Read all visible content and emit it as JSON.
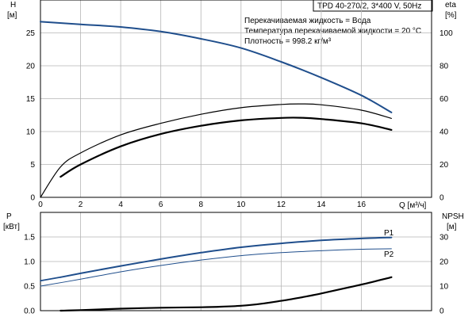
{
  "header": {
    "title": "TPD 40-270/2, 3*400 V, 50Hz",
    "liquid": "Перекачиваемая жидкость = Вода",
    "temperature": "Температура перекачиваемой жидкости = 20 °C",
    "density": "Плотность = 998.2 кг/м³"
  },
  "colors": {
    "blue": "#1f4e8c",
    "black": "#000000",
    "grid": "#b5b5b5"
  },
  "chart_data": [
    {
      "type": "line",
      "title": "",
      "xlabel": "Q [м³/ч]",
      "ylabel": "H [м]",
      "y2label": "eta [%]",
      "y_label_top": "H",
      "y_label_unit": "[м]",
      "y2_label_top": "eta",
      "y2_label_unit": "[%]",
      "xlim": [
        0,
        19.5
      ],
      "ylim": [
        0,
        30
      ],
      "y2lim": [
        0,
        120
      ],
      "xticks": [
        0,
        2,
        4,
        6,
        8,
        10,
        12,
        14,
        16
      ],
      "yticks": [
        0,
        5,
        10,
        15,
        20,
        25
      ],
      "y2ticks": [
        0,
        20,
        40,
        60,
        80,
        100
      ],
      "grid": true,
      "series": [
        {
          "name": "",
          "axis": "left",
          "color": "#1f4e8c",
          "width": 2,
          "x": [
            0,
            2,
            4,
            6,
            8,
            10,
            12,
            14,
            16,
            17.5
          ],
          "y": [
            26.7,
            26.3,
            25.9,
            25.2,
            24.1,
            22.7,
            20.6,
            18.2,
            15.5,
            12.9
          ]
        },
        {
          "name": "",
          "axis": "right",
          "color": "#000000",
          "width": 1.2,
          "x": [
            0,
            1,
            2,
            4,
            6,
            8,
            10,
            12,
            13,
            14,
            16,
            17.5
          ],
          "y": [
            0,
            18.5,
            27,
            38,
            45,
            50.5,
            54.5,
            56.5,
            56.8,
            56.3,
            53,
            48
          ]
        },
        {
          "name": "",
          "axis": "right",
          "color": "#000000",
          "width": 2.2,
          "x": [
            1,
            2,
            4,
            6,
            8,
            10,
            12,
            13,
            14,
            16,
            17.5
          ],
          "y": [
            12.5,
            20,
            31,
            38.5,
            43.5,
            46.8,
            48.3,
            48.4,
            47.6,
            45,
            41
          ]
        }
      ]
    },
    {
      "type": "line",
      "title": "",
      "xlabel": "",
      "ylabel": "P [кВт]",
      "y2label": "NPSH [м]",
      "y_label_top": "P",
      "y_label_unit": "[кВт]",
      "y2_label_top": "NPSH",
      "y2_label_unit": "[м]",
      "xlim": [
        0,
        19.5
      ],
      "ylim": [
        0,
        2
      ],
      "y2lim": [
        0,
        40
      ],
      "yticks": [
        0,
        0.5,
        1.0,
        1.5
      ],
      "ytick_labels": [
        "0.0",
        "0.5",
        "1.0",
        "1.5"
      ],
      "y2ticks": [
        0,
        10,
        20,
        30
      ],
      "grid": true,
      "series": [
        {
          "name": "P1",
          "axis": "left",
          "color": "#1f4e8c",
          "width": 2,
          "x": [
            1,
            2,
            4,
            6,
            8,
            10,
            12,
            14,
            16,
            17.5
          ],
          "y": [
            0.68,
            0.76,
            0.91,
            1.05,
            1.18,
            1.29,
            1.37,
            1.43,
            1.47,
            1.49
          ]
        },
        {
          "name": "",
          "axis": "left",
          "color": "#1f4e8c",
          "width": 1.8,
          "x": [
            0,
            1
          ],
          "y": [
            0.61,
            0.68
          ]
        },
        {
          "name": "P2",
          "axis": "left",
          "color": "#1f4e8c",
          "width": 1,
          "x": [
            0,
            2,
            4,
            6,
            8,
            10,
            12,
            14,
            16,
            17.5
          ],
          "y": [
            0.5,
            0.64,
            0.79,
            0.92,
            1.03,
            1.12,
            1.18,
            1.22,
            1.25,
            1.26
          ]
        },
        {
          "name": "",
          "axis": "right",
          "color": "#000000",
          "width": 2.2,
          "x": [
            1,
            2,
            4,
            6,
            8,
            9,
            10,
            11,
            12,
            13,
            14,
            15,
            16,
            17,
            17.5
          ],
          "y": [
            0,
            0.2,
            0.8,
            1.2,
            1.4,
            1.6,
            2.0,
            2.8,
            4.0,
            5.4,
            7.0,
            8.8,
            10.6,
            12.6,
            13.6
          ]
        }
      ]
    }
  ]
}
